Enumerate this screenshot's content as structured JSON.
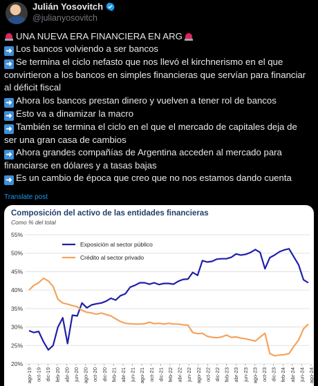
{
  "author": {
    "name": "Julián Yosovitch",
    "handle": "@julianyosovitch",
    "verified_icon": "verified-badge-icon",
    "avatar_icon": "profile-photo"
  },
  "tweet": {
    "lines": [
      {
        "icon": "siren-icon",
        "text": "UNA NUEVA ERA FINANCIERA EN ARG",
        "trail_icon": "siren-icon"
      },
      {
        "icon": "right-arrow-icon",
        "text": "Los bancos volviendo a ser bancos"
      },
      {
        "icon": "right-arrow-icon",
        "text": "Se termina el ciclo nefasto que nos llevó el kirchnerismo en el que"
      },
      {
        "icon": null,
        "text": "convirtieron a los bancos en simples financieras que servían para financiar"
      },
      {
        "icon": null,
        "text": "al déficit fiscal"
      },
      {
        "icon": "right-arrow-icon",
        "text": "Ahora los bancos prestan dinero y vuelven a tener rol de bancos"
      },
      {
        "icon": "right-arrow-icon",
        "text": "Esto va a dinamizar la macro"
      },
      {
        "icon": "right-arrow-icon",
        "text": "También se termina el ciclo en el que el mercado de capitales deja de"
      },
      {
        "icon": null,
        "text": "ser una gran casa de cambios"
      },
      {
        "icon": "right-arrow-icon",
        "text": "Ahora grandes compañías de Argentina acceden al mercado para"
      },
      {
        "icon": null,
        "text": "financiarse en dólares y a tasas bajas"
      },
      {
        "icon": "right-arrow-icon",
        "text": "Es un cambio de época que creo que no nos estamos dando cuenta"
      }
    ],
    "translate_label": "Translate post"
  },
  "colors": {
    "background": "#000000",
    "text": "#e7e9ea",
    "muted": "#71767b",
    "link": "#1d9bf0",
    "series_public": "#1f1fa8",
    "series_private": "#f5a25d",
    "chart_title": "#243c6b"
  },
  "chart_data": {
    "type": "line",
    "title": "Composición del activo de las entidades financieras",
    "subtitle": "Como % del total",
    "ylim": [
      20,
      55
    ],
    "yticks": [
      "20%",
      "25%",
      "30%",
      "35%",
      "40%",
      "45%",
      "50%",
      "55%"
    ],
    "ytick_values": [
      20,
      25,
      30,
      35,
      40,
      45,
      50,
      55
    ],
    "xtick_labels": [
      "ago-19",
      "oct-19",
      "dic-19",
      "feb-20",
      "abr-20",
      "jun-20",
      "ago-20",
      "oct-20",
      "dic-20",
      "feb-21",
      "abr-21",
      "jun-21",
      "ago-21",
      "oct-21",
      "dic-21",
      "feb-22",
      "abr-22",
      "jun-22",
      "ago-22",
      "oct-22",
      "dic-22",
      "feb-23",
      "abr-23",
      "jun-23",
      "ago-23",
      "oct-23",
      "dic-23",
      "feb-24",
      "abr-24",
      "jun-24",
      "ago-24"
    ],
    "grid": true,
    "legend_position": "top-left",
    "series": [
      {
        "name": "Exposición al sector público",
        "values": [
          29.0,
          28.5,
          28.8,
          26.0,
          23.8,
          25.0,
          30.0,
          32.5,
          25.5,
          33.2,
          33.0,
          36.5,
          35.2,
          36.0,
          36.3,
          36.5,
          37.0,
          37.8,
          37.3,
          38.5,
          39.0,
          40.8,
          41.3,
          42.0,
          42.0,
          41.6,
          42.0,
          41.5,
          41.8,
          41.8,
          41.6,
          42.4,
          42.9,
          43.0,
          44.8,
          44.0,
          48.0,
          47.6,
          47.8,
          48.4,
          48.5,
          48.5,
          48.9,
          49.8,
          49.5,
          49.7,
          50.2,
          51.0,
          50.2,
          45.8,
          48.8,
          49.5,
          50.4,
          50.9,
          51.2,
          49.0,
          46.8,
          42.8,
          42.0
        ]
      },
      {
        "name": "Crédito al sector privado",
        "values": [
          40.0,
          41.3,
          42.0,
          43.2,
          42.5,
          41.0,
          37.5,
          36.5,
          36.2,
          35.8,
          35.5,
          34.5,
          34.0,
          33.8,
          33.5,
          33.8,
          33.4,
          33.0,
          32.2,
          31.5,
          31.0,
          30.9,
          30.8,
          30.8,
          30.9,
          31.3,
          30.9,
          31.0,
          30.8,
          31.0,
          30.8,
          30.8,
          30.6,
          30.5,
          28.5,
          28.2,
          28.3,
          27.5,
          27.2,
          27.1,
          27.3,
          27.8,
          27.2,
          27.3,
          27.0,
          26.8,
          26.5,
          26.2,
          27.3,
          28.3,
          22.8,
          22.2,
          22.4,
          22.5,
          22.8,
          24.8,
          26.5,
          29.5,
          30.8
        ]
      }
    ]
  }
}
